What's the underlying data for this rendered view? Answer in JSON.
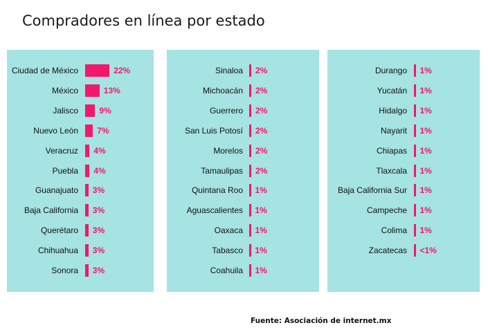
{
  "title": "Compradores en línea por estado",
  "source": "Fuente: Asociación de internet.mx",
  "colors": {
    "panel": "#a6e3e3",
    "bar": "#f2186b",
    "text": "#111111"
  },
  "chart_data": [
    {
      "type": "bar",
      "orientation": "horizontal",
      "categories": [
        "Ciudad de México",
        "México",
        "Jalisco",
        "Nuevo León",
        "Veracruz",
        "Puebla",
        "Guanajuato",
        "Baja California",
        "Querétaro",
        "Chihuahua",
        "Sonora"
      ],
      "values": [
        22,
        13,
        9,
        7,
        4,
        4,
        3,
        3,
        3,
        3,
        3
      ],
      "labels": [
        "22%",
        "13%",
        "9%",
        "7%",
        "4%",
        "4%",
        "3%",
        "3%",
        "3%",
        "3%",
        "3%"
      ],
      "unit": "%"
    },
    {
      "type": "bar",
      "orientation": "horizontal",
      "categories": [
        "Sinaloa",
        "Michoacán",
        "Guerrero",
        "San Luis Potosí",
        "Morelos",
        "Tamaulipas",
        "Quintana Roo",
        "Aguascalientes",
        "Oaxaca",
        "Tabasco",
        "Coahuila"
      ],
      "values": [
        2,
        2,
        2,
        2,
        2,
        2,
        1,
        1,
        1,
        1,
        1
      ],
      "labels": [
        "2%",
        "2%",
        "2%",
        "2%",
        "2%",
        "2%",
        "1%",
        "1%",
        "1%",
        "1%",
        "1%"
      ],
      "unit": "%"
    },
    {
      "type": "bar",
      "orientation": "horizontal",
      "categories": [
        "Durango",
        "Yucatán",
        "Hidalgo",
        "Nayarit",
        "Chiapas",
        "Tlaxcala",
        "Baja California Sur",
        "Campeche",
        "Colima",
        "Zacatecas"
      ],
      "values": [
        1,
        1,
        1,
        1,
        1,
        1,
        1,
        1,
        1,
        0.5
      ],
      "labels": [
        "1%",
        "1%",
        "1%",
        "1%",
        "1%",
        "1%",
        "1%",
        "1%",
        "1%",
        "<1%"
      ],
      "unit": "%"
    }
  ]
}
